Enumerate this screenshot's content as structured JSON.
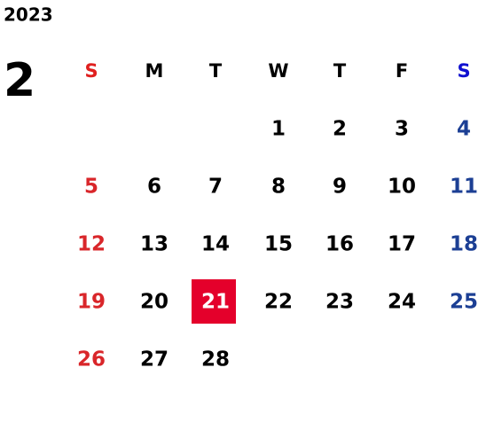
{
  "header": {
    "year": "2023",
    "month": "2"
  },
  "weekdays": [
    "S",
    "M",
    "T",
    "W",
    "T",
    "F",
    "S"
  ],
  "weeks": [
    [
      null,
      null,
      null,
      1,
      2,
      3,
      4
    ],
    [
      5,
      6,
      7,
      8,
      9,
      10,
      11
    ],
    [
      12,
      13,
      14,
      15,
      16,
      17,
      18
    ],
    [
      19,
      20,
      21,
      22,
      23,
      24,
      25
    ],
    [
      26,
      27,
      28,
      null,
      null,
      null,
      null
    ]
  ],
  "highlight_day": 21
}
